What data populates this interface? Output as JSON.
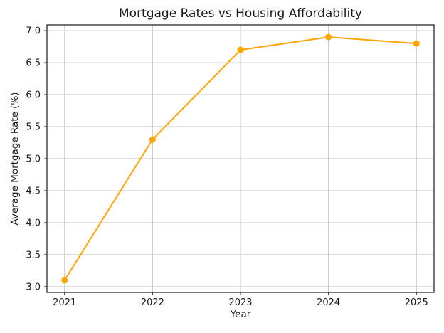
{
  "chart_data": {
    "type": "line",
    "title": "Mortgage Rates vs Housing Affordability",
    "xlabel": "Year",
    "ylabel": "Average Mortgage Rate (%)",
    "x": [
      2021,
      2022,
      2023,
      2024,
      2025
    ],
    "series": [
      {
        "name": "Average Mortgage Rate (%)",
        "values": [
          3.1,
          5.3,
          6.7,
          6.9,
          6.8
        ]
      }
    ],
    "xticks": [
      2021,
      2022,
      2023,
      2024,
      2025
    ],
    "xtick_labels": [
      "2021",
      "2022",
      "2023",
      "2024",
      "2025"
    ],
    "yticks": [
      3.0,
      3.5,
      4.0,
      4.5,
      5.0,
      5.5,
      6.0,
      6.5,
      7.0
    ],
    "ytick_labels": [
      "3.0",
      "3.5",
      "4.0",
      "4.5",
      "5.0",
      "5.5",
      "6.0",
      "6.5",
      "7.0"
    ],
    "xlim": [
      2020.8,
      2025.2
    ],
    "ylim": [
      2.91,
      7.09
    ],
    "grid": true,
    "legend": false,
    "colors": {
      "line": "#FFA500",
      "marker": "#FFA500",
      "grid": "#c6c6c6",
      "spine": "#2b2b2b",
      "text": "#1a1a1a",
      "background": "#ffffff"
    }
  }
}
